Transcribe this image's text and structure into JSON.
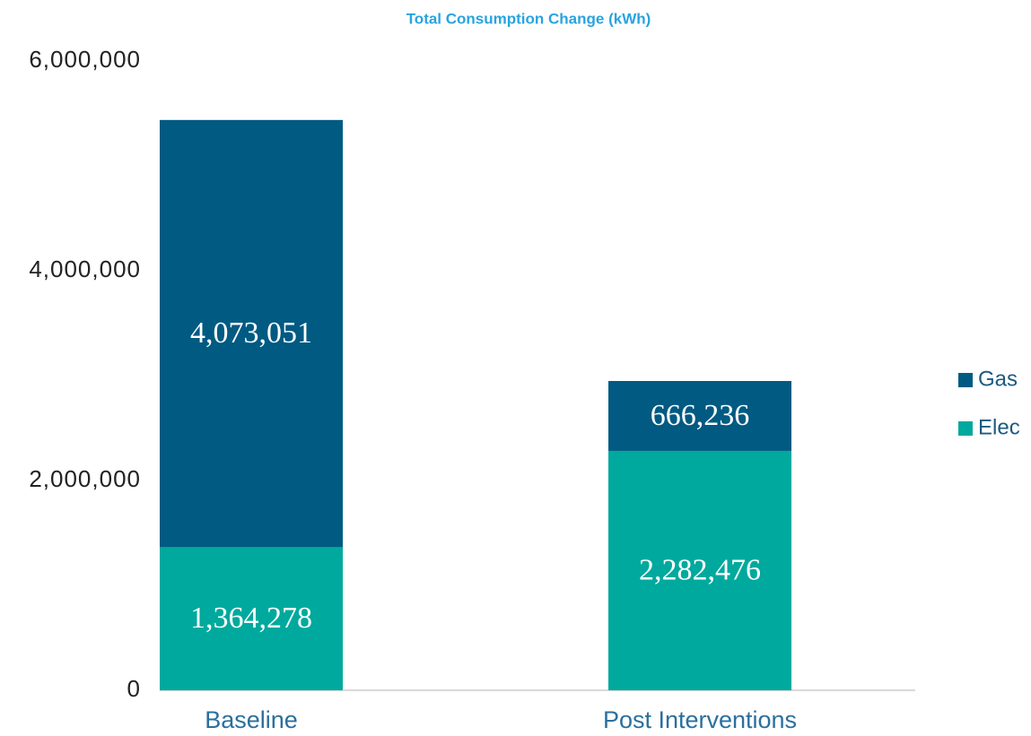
{
  "chart_data": {
    "type": "stacked_bar",
    "title": "Total Consumption Change (kWh)",
    "categories": [
      "Baseline",
      "Post Interventions"
    ],
    "series": [
      {
        "name": "Elec",
        "color": "#00a99d",
        "values": [
          1364278,
          2282476
        ],
        "value_labels": [
          "1,364,278",
          "2,282,476"
        ]
      },
      {
        "name": "Gas",
        "color": "#005a82",
        "values": [
          4073051,
          666236
        ],
        "value_labels": [
          "4,073,051",
          "666,236"
        ]
      }
    ],
    "ylim": [
      0,
      6000000
    ],
    "yticks": [
      0,
      {
        "value": 2000000,
        "label": "2,000,000"
      },
      {
        "value": 4000000,
        "label": "4,000,000"
      },
      {
        "value": 6000000,
        "label": "6,000,000"
      }
    ],
    "legend": "right"
  }
}
